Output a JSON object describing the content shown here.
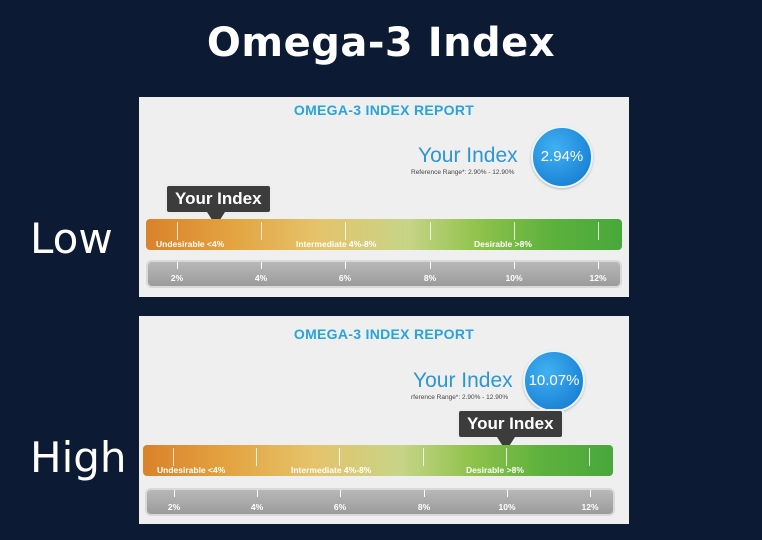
{
  "title": "Omega-3 Index",
  "reports": [
    {
      "label": "Low",
      "report_title": "OMEGA-3 INDEX REPORT",
      "your_index_label": "Your Index",
      "reference_range": "Reference Range*: 2.90% - 12.90%",
      "index_value": "2.94%",
      "pointer_label": "Your Index",
      "zones": [
        "Undesirable <4%",
        "Intermediate 4%-8%",
        "Desirable >8%"
      ],
      "scale": [
        "2%",
        "4%",
        "6%",
        "8%",
        "10%",
        "12%"
      ]
    },
    {
      "label": "High",
      "report_title": "OMEGA-3 INDEX REPORT",
      "your_index_label": "Your Index",
      "reference_range": "rference Range*: 2.90% - 12.90%",
      "index_value": "10.07%",
      "pointer_label": "Your Index",
      "zones": [
        "Undesirable <4%",
        "Intermediate 4%-8%",
        "Desirable >8%"
      ],
      "scale": [
        "2%",
        "4%",
        "6%",
        "8%",
        "10%",
        "12%"
      ]
    }
  ]
}
